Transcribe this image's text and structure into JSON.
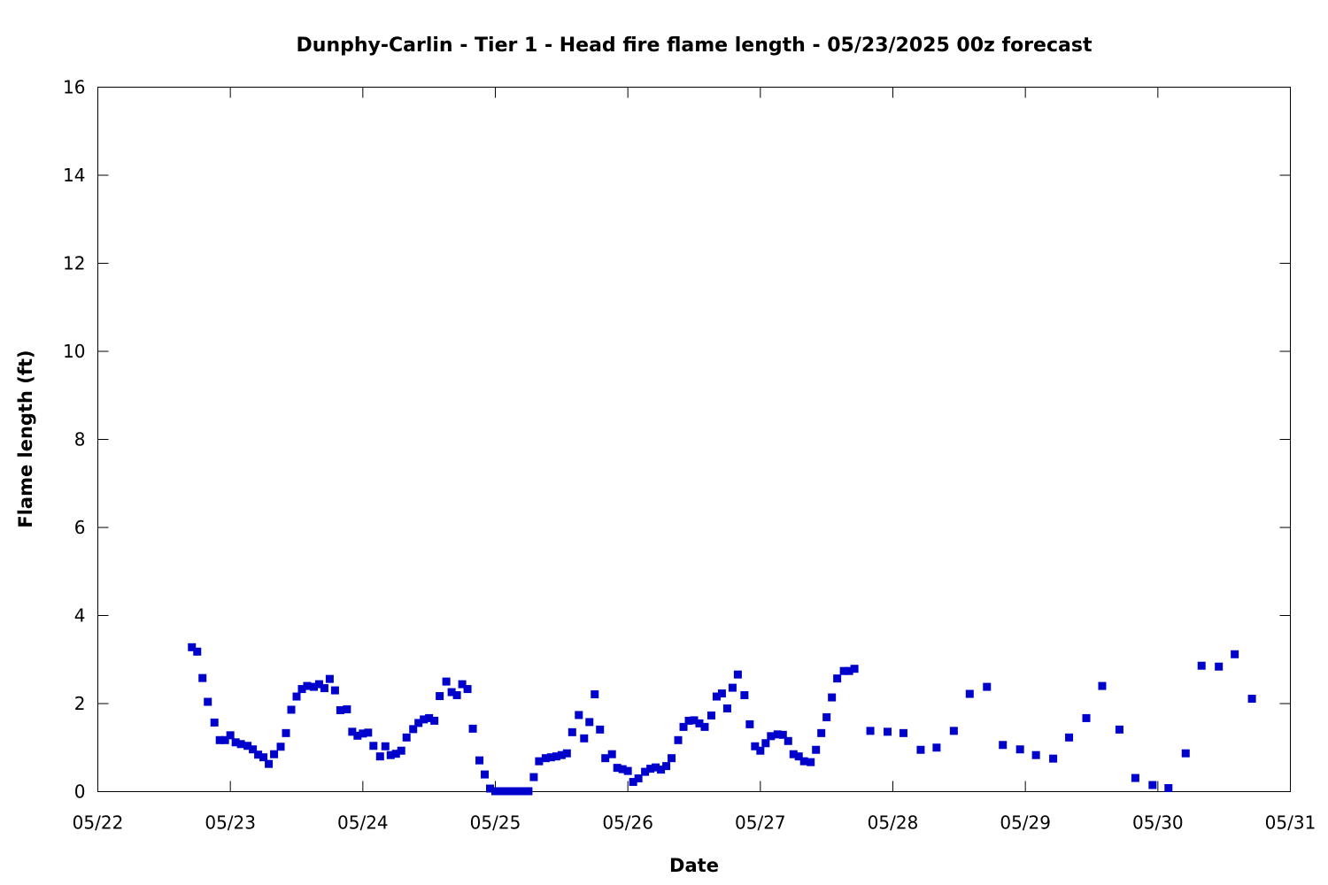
{
  "chart_data": {
    "type": "scatter",
    "title": "Dunphy-Carlin - Tier 1 - Head fire flame length - 05/23/2025 00z forecast",
    "xlabel": "Date",
    "ylabel": "Flame length (ft)",
    "xlim": [
      22,
      31
    ],
    "ylim": [
      0,
      16
    ],
    "x_ticks": [
      {
        "value": 22,
        "label": "05/22"
      },
      {
        "value": 23,
        "label": "05/23"
      },
      {
        "value": 24,
        "label": "05/24"
      },
      {
        "value": 25,
        "label": "05/25"
      },
      {
        "value": 26,
        "label": "05/26"
      },
      {
        "value": 27,
        "label": "05/27"
      },
      {
        "value": 28,
        "label": "05/28"
      },
      {
        "value": 29,
        "label": "05/29"
      },
      {
        "value": 30,
        "label": "05/30"
      },
      {
        "value": 31,
        "label": "05/31"
      }
    ],
    "y_ticks": [
      {
        "value": 0,
        "label": "0"
      },
      {
        "value": 2,
        "label": "2"
      },
      {
        "value": 4,
        "label": "4"
      },
      {
        "value": 6,
        "label": "6"
      },
      {
        "value": 8,
        "label": "8"
      },
      {
        "value": 10,
        "label": "10"
      },
      {
        "value": 12,
        "label": "12"
      },
      {
        "value": 14,
        "label": "14"
      },
      {
        "value": 16,
        "label": "16"
      }
    ],
    "grid": false,
    "marker_color": "#0000cc",
    "x": [
      22.71,
      22.75,
      22.79,
      22.83,
      22.88,
      22.92,
      22.96,
      23.0,
      23.04,
      23.08,
      23.13,
      23.17,
      23.21,
      23.25,
      23.29,
      23.33,
      23.38,
      23.42,
      23.46,
      23.5,
      23.54,
      23.58,
      23.63,
      23.67,
      23.71,
      23.75,
      23.79,
      23.83,
      23.88,
      23.92,
      23.96,
      24.0,
      24.04,
      24.08,
      24.13,
      24.17,
      24.21,
      24.25,
      24.29,
      24.33,
      24.38,
      24.42,
      24.46,
      24.5,
      24.54,
      24.58,
      24.63,
      24.67,
      24.71,
      24.75,
      24.79,
      24.83,
      24.88,
      24.92,
      24.96,
      25.0,
      25.04,
      25.08,
      25.13,
      25.17,
      25.21,
      25.25,
      25.29,
      25.33,
      25.38,
      25.42,
      25.46,
      25.5,
      25.54,
      25.58,
      25.63,
      25.67,
      25.71,
      25.75,
      25.79,
      25.83,
      25.88,
      25.92,
      25.96,
      26.0,
      26.04,
      26.08,
      26.13,
      26.17,
      26.21,
      26.25,
      26.29,
      26.33,
      26.38,
      26.42,
      26.46,
      26.5,
      26.54,
      26.58,
      26.63,
      26.67,
      26.71,
      26.75,
      26.79,
      26.83,
      26.88,
      26.92,
      26.96,
      27.0,
      27.04,
      27.08,
      27.13,
      27.17,
      27.21,
      27.25,
      27.29,
      27.33,
      27.38,
      27.42,
      27.46,
      27.5,
      27.54,
      27.58,
      27.63,
      27.67,
      27.71,
      27.83,
      27.96,
      28.08,
      28.21,
      28.33,
      28.46,
      28.58,
      28.71,
      28.83,
      28.96,
      29.08,
      29.21,
      29.33,
      29.46,
      29.58,
      29.71,
      29.83,
      29.96,
      30.08,
      30.21,
      30.33,
      30.46,
      30.58,
      30.71
    ],
    "y": [
      3.28,
      3.18,
      2.58,
      2.04,
      1.57,
      1.17,
      1.17,
      1.28,
      1.12,
      1.08,
      1.04,
      0.96,
      0.84,
      0.78,
      0.63,
      0.85,
      1.02,
      1.33,
      1.86,
      2.16,
      2.33,
      2.4,
      2.38,
      2.44,
      2.35,
      2.56,
      2.3,
      1.85,
      1.87,
      1.36,
      1.27,
      1.32,
      1.34,
      1.04,
      0.8,
      1.03,
      0.83,
      0.86,
      0.93,
      1.23,
      1.42,
      1.56,
      1.64,
      1.67,
      1.61,
      2.17,
      2.5,
      2.26,
      2.19,
      2.44,
      2.33,
      1.43,
      0.71,
      0.39,
      0.07,
      0.01,
      0.01,
      0.01,
      0.01,
      0.01,
      0.01,
      0.01,
      0.33,
      0.69,
      0.76,
      0.78,
      0.8,
      0.83,
      0.87,
      1.35,
      1.74,
      1.21,
      1.58,
      2.21,
      1.41,
      0.76,
      0.85,
      0.54,
      0.51,
      0.47,
      0.22,
      0.3,
      0.45,
      0.52,
      0.55,
      0.5,
      0.58,
      0.76,
      1.17,
      1.47,
      1.61,
      1.62,
      1.55,
      1.47,
      1.73,
      2.16,
      2.23,
      1.89,
      2.36,
      2.66,
      2.19,
      1.53,
      1.03,
      0.93,
      1.1,
      1.26,
      1.3,
      1.29,
      1.15,
      0.85,
      0.8,
      0.69,
      0.67,
      0.95,
      1.33,
      1.69,
      2.14,
      2.57,
      2.74,
      2.74,
      2.79,
      1.38,
      1.36,
      1.33,
      0.95,
      1.0,
      1.38,
      2.22,
      2.38,
      1.06,
      0.96,
      0.83,
      0.75,
      1.23,
      1.67,
      2.4,
      1.41,
      0.31,
      0.15,
      0.08,
      0.87,
      2.86,
      2.84,
      3.12,
      2.11
    ]
  }
}
